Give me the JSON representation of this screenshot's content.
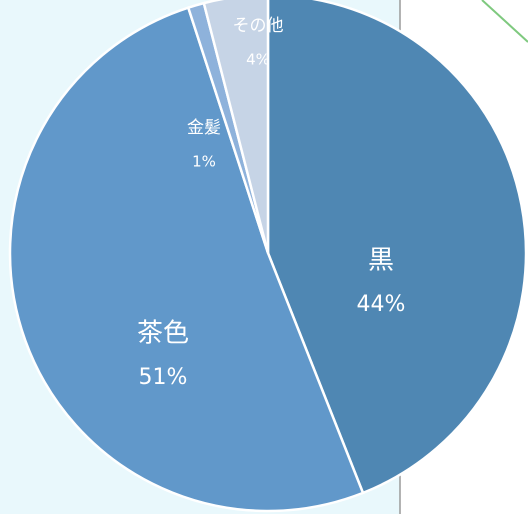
{
  "chart_data": {
    "type": "pie",
    "categories": [
      "黒",
      "茶色",
      "金髪",
      "その他"
    ],
    "values": [
      44,
      51,
      1,
      4
    ],
    "value_labels": [
      "44%",
      "51%",
      "1%",
      "4%"
    ],
    "colors": [
      "#4f87b3",
      "#6198ca",
      "#8eb2db",
      "#c6d4e6"
    ]
  }
}
